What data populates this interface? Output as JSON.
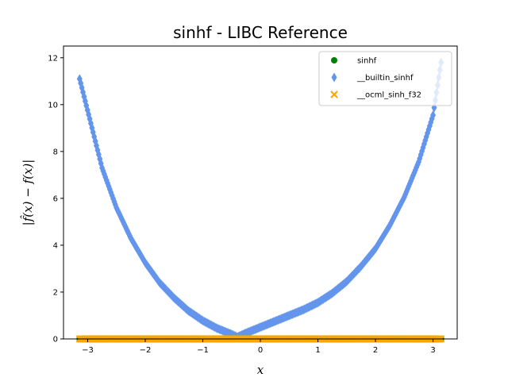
{
  "chart_data": {
    "type": "scatter",
    "title": "sinhf - LIBC Reference",
    "xlabel": "x",
    "ylabel": "|f̂(x) − f(x)|",
    "xlim": [
      -3.42,
      3.42
    ],
    "ylim": [
      0,
      12.5
    ],
    "xticks": [
      -3,
      -2,
      -1,
      0,
      1,
      2,
      3
    ],
    "xtick_labels": [
      "−3",
      "−2",
      "−1",
      "0",
      "1",
      "2",
      "3"
    ],
    "yticks": [
      0,
      2,
      4,
      6,
      8,
      10,
      12
    ],
    "ytick_labels": [
      "0",
      "2",
      "4",
      "6",
      "8",
      "10",
      "12"
    ],
    "grid": false,
    "legend_position": "top-right",
    "series": [
      {
        "name": "sinhf",
        "marker": "circle",
        "color": "#008000",
        "x": [
          -3.14,
          -2.5,
          -2.0,
          -1.5,
          -1.0,
          -0.5,
          0.0,
          0.5,
          1.0,
          1.5,
          2.0,
          2.5,
          3.14
        ],
        "y": [
          0,
          0,
          0,
          0,
          0,
          0,
          0,
          0,
          0,
          0,
          0,
          0,
          0
        ]
      },
      {
        "name": "__builtin_sinhf",
        "marker": "thin_diamond",
        "color": "#6495ed",
        "x": [
          -3.14,
          -2.75,
          -2.5,
          -2.25,
          -2.0,
          -1.75,
          -1.5,
          -1.25,
          -1.0,
          -0.75,
          -0.5,
          -0.4,
          -0.25,
          0.0,
          0.25,
          0.5,
          0.75,
          1.0,
          1.25,
          1.5,
          1.75,
          2.0,
          2.25,
          2.5,
          2.75,
          3.0,
          3.14
        ],
        "y": [
          11.1,
          7.3,
          5.6,
          4.3,
          3.25,
          2.4,
          1.75,
          1.2,
          0.78,
          0.45,
          0.2,
          0.08,
          0.25,
          0.5,
          0.75,
          1.0,
          1.25,
          1.55,
          1.95,
          2.45,
          3.1,
          3.85,
          4.85,
          6.05,
          7.55,
          9.55,
          11.8
        ]
      },
      {
        "name": "__ocml_sinh_f32",
        "marker": "x",
        "color": "#ffa500",
        "x": [
          -3.14,
          -2.5,
          -2.0,
          -1.5,
          -1.0,
          -0.5,
          0.0,
          0.5,
          1.0,
          1.5,
          2.0,
          2.5,
          3.14
        ],
        "y": [
          0,
          0,
          0,
          0,
          0,
          0,
          0,
          0,
          0,
          0,
          0,
          0,
          0
        ]
      }
    ]
  }
}
